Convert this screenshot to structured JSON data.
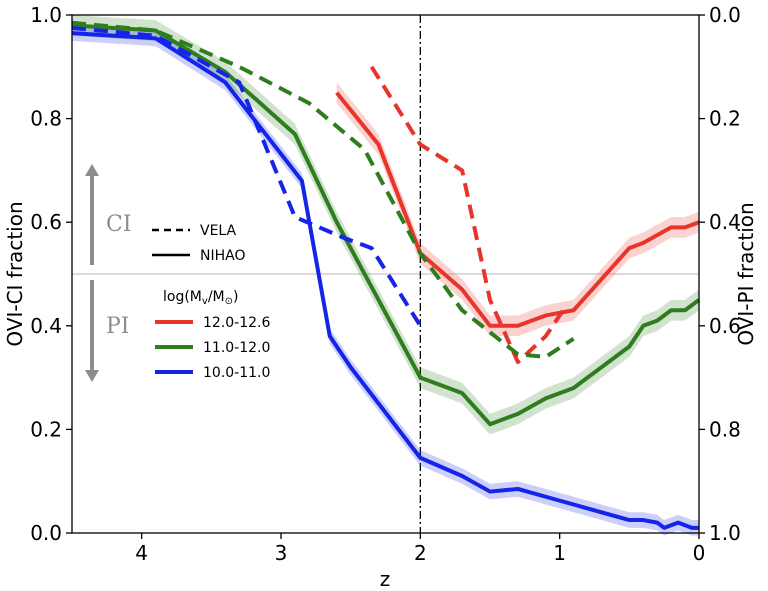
{
  "chart_data": {
    "type": "line",
    "xlabel": "z",
    "ylabel": "OVI-CI fraction",
    "y2label": "OVI-PI fraction",
    "xlim": [
      4.5,
      0
    ],
    "ylim": [
      0,
      1
    ],
    "y2lim": [
      1,
      0
    ],
    "x_ticks": [
      4,
      3,
      2,
      1,
      0
    ],
    "x_tick_labels": [
      "4",
      "3",
      "2",
      "1",
      "0"
    ],
    "y_ticks": [
      0.0,
      0.2,
      0.4,
      0.6,
      0.8,
      1.0
    ],
    "y_tick_labels": [
      "0.0",
      "0.2",
      "0.4",
      "0.6",
      "0.8",
      "1.0"
    ],
    "y2_tick_labels": [
      "1.0",
      "0.8",
      "0.6",
      "0.4",
      "0.2",
      "0.0"
    ],
    "vline_x": 2,
    "hline_y": 0.5,
    "region_labels": {
      "upper": "CI",
      "lower": "PI"
    },
    "legend_style": {
      "dashed": "VELA",
      "solid": "NIHAO"
    },
    "legend_mass_title": "log(Mv/M⊙)",
    "legend_mass_title_main": "log(M",
    "legend_mass_title_sub1": "v",
    "legend_mass_title_mid": "/M",
    "legend_mass_title_sub2": "⊙",
    "legend_mass_title_end": ")",
    "series": [
      {
        "name": "12.0-12.6",
        "color": "#e8352b",
        "style": "solid",
        "x": [
          2.6,
          2.3,
          2.0,
          1.7,
          1.5,
          1.3,
          1.1,
          0.9,
          0.7,
          0.5,
          0.4,
          0.2,
          0.1,
          0.0
        ],
        "y": [
          0.85,
          0.75,
          0.54,
          0.47,
          0.4,
          0.4,
          0.42,
          0.43,
          0.49,
          0.55,
          0.56,
          0.59,
          0.59,
          0.6
        ],
        "band": 0.02
      },
      {
        "name": "12.0-12.6",
        "color": "#e8352b",
        "style": "dashed",
        "x": [
          2.35,
          2.0,
          1.7,
          1.5,
          1.3,
          1.1,
          0.95
        ],
        "y": [
          0.9,
          0.75,
          0.7,
          0.45,
          0.33,
          0.38,
          0.44
        ]
      },
      {
        "name": "11.0-12.0",
        "color": "#2e7d1f",
        "style": "solid",
        "x": [
          4.5,
          3.9,
          3.4,
          2.9,
          2.6,
          2.3,
          2.0,
          1.7,
          1.5,
          1.3,
          1.1,
          0.9,
          0.7,
          0.5,
          0.4,
          0.3,
          0.2,
          0.1,
          0.0
        ],
        "y": [
          0.98,
          0.97,
          0.89,
          0.77,
          0.6,
          0.45,
          0.3,
          0.27,
          0.21,
          0.23,
          0.26,
          0.28,
          0.32,
          0.36,
          0.4,
          0.41,
          0.43,
          0.43,
          0.45
        ],
        "band": 0.02
      },
      {
        "name": "11.0-12.0",
        "color": "#2e7d1f",
        "style": "dashed",
        "x": [
          4.5,
          3.9,
          3.3,
          2.8,
          2.4,
          2.0,
          1.7,
          1.3,
          1.1,
          0.9
        ],
        "y": [
          0.985,
          0.97,
          0.9,
          0.83,
          0.74,
          0.54,
          0.43,
          0.345,
          0.34,
          0.375
        ]
      },
      {
        "name": "10.0-11.0",
        "color": "#1424e8",
        "style": "solid",
        "x": [
          4.5,
          3.9,
          3.4,
          2.85,
          2.65,
          2.5,
          2.3,
          2.0,
          1.7,
          1.5,
          1.3,
          1.1,
          0.9,
          0.7,
          0.5,
          0.4,
          0.3,
          0.25,
          0.15,
          0.05,
          0.0
        ],
        "y": [
          0.965,
          0.955,
          0.87,
          0.68,
          0.38,
          0.32,
          0.25,
          0.145,
          0.11,
          0.08,
          0.085,
          0.07,
          0.055,
          0.04,
          0.025,
          0.025,
          0.02,
          0.01,
          0.02,
          0.01,
          0.01
        ],
        "band": 0.015
      },
      {
        "name": "10.0-11.0",
        "color": "#1424e8",
        "style": "dashed",
        "x": [
          4.5,
          3.9,
          3.3,
          2.9,
          2.55,
          2.35,
          2.0
        ],
        "y": [
          0.975,
          0.96,
          0.87,
          0.61,
          0.57,
          0.55,
          0.4
        ]
      }
    ],
    "legend_masses": [
      {
        "label": "12.0-12.6",
        "color": "#e8352b"
      },
      {
        "label": "11.0-12.0",
        "color": "#2e7d1f"
      },
      {
        "label": "10.0-11.0",
        "color": "#1424e8"
      }
    ]
  }
}
